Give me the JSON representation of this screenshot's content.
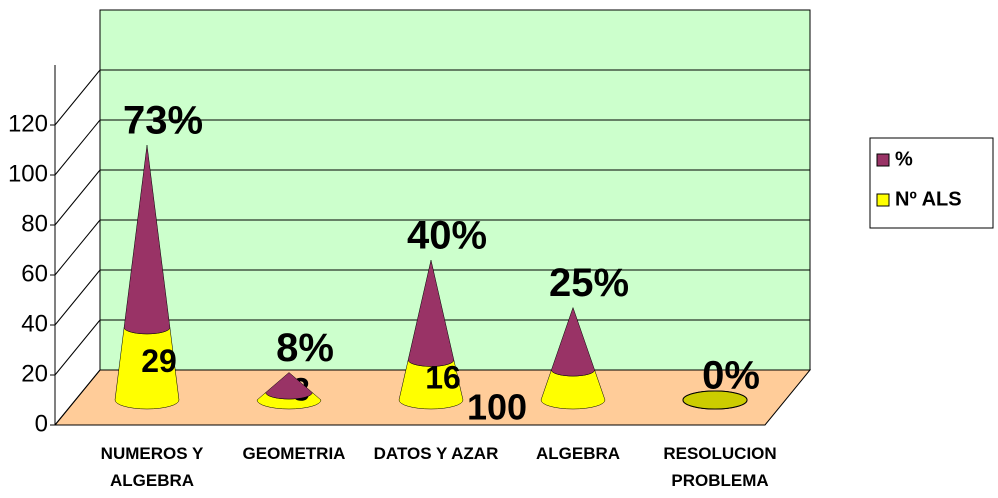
{
  "chart_data": {
    "type": "cone",
    "categories": [
      "NUMEROS Y ALGEBRA",
      "GEOMETRIA",
      "DATOS Y AZAR",
      "ALGEBRA",
      "RESOLUCION PROBLEMA"
    ],
    "series": [
      {
        "name": "Nº ALS",
        "color": "#ffff00",
        "values": [
          29,
          3,
          16,
          12,
          0
        ],
        "value_labels": [
          "29",
          "3",
          "16",
          null,
          null
        ]
      },
      {
        "name": "%",
        "color": "#993366",
        "values": [
          73,
          8,
          40,
          25,
          0
        ],
        "value_labels": [
          "73%",
          "8%",
          "40%",
          "25%",
          "0%"
        ]
      }
    ],
    "ylim": [
      0,
      120
    ],
    "yticks": [
      0,
      20,
      40,
      60,
      80,
      100,
      120
    ],
    "grid": true,
    "legend": "right",
    "annotations": [
      {
        "text": "100"
      }
    ]
  }
}
